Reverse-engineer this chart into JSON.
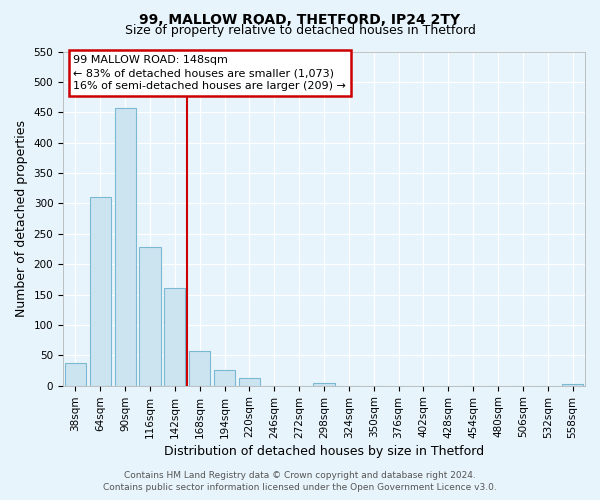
{
  "title": "99, MALLOW ROAD, THETFORD, IP24 2TY",
  "subtitle": "Size of property relative to detached houses in Thetford",
  "xlabel": "Distribution of detached houses by size in Thetford",
  "ylabel": "Number of detached properties",
  "bar_labels": [
    "38sqm",
    "64sqm",
    "90sqm",
    "116sqm",
    "142sqm",
    "168sqm",
    "194sqm",
    "220sqm",
    "246sqm",
    "272sqm",
    "298sqm",
    "324sqm",
    "350sqm",
    "376sqm",
    "402sqm",
    "428sqm",
    "454sqm",
    "480sqm",
    "506sqm",
    "532sqm",
    "558sqm"
  ],
  "bar_values": [
    38,
    311,
    457,
    229,
    160,
    57,
    26,
    13,
    0,
    0,
    4,
    0,
    0,
    0,
    0,
    0,
    0,
    0,
    0,
    0,
    2
  ],
  "bar_color": "#cce4f0",
  "bar_edge_color": "#7bb8d4",
  "vline_index": 4,
  "vline_color": "#cc0000",
  "ylim_max": 550,
  "yticks": [
    0,
    50,
    100,
    150,
    200,
    250,
    300,
    350,
    400,
    450,
    500,
    550
  ],
  "annotation_line0": "99 MALLOW ROAD: 148sqm",
  "annotation_line1": "← 83% of detached houses are smaller (1,073)",
  "annotation_line2": "16% of semi-detached houses are larger (209) →",
  "annotation_box_color": "#ffffff",
  "annotation_box_edge": "#cc0000",
  "footer_line1": "Contains HM Land Registry data © Crown copyright and database right 2024.",
  "footer_line2": "Contains public sector information licensed under the Open Government Licence v3.0.",
  "background_color": "#e8f4fb",
  "grid_color": "#ffffff",
  "title_fontsize": 10,
  "subtitle_fontsize": 9,
  "axis_label_fontsize": 9,
  "tick_fontsize": 7.5,
  "annotation_fontsize": 8,
  "footer_fontsize": 6.5
}
